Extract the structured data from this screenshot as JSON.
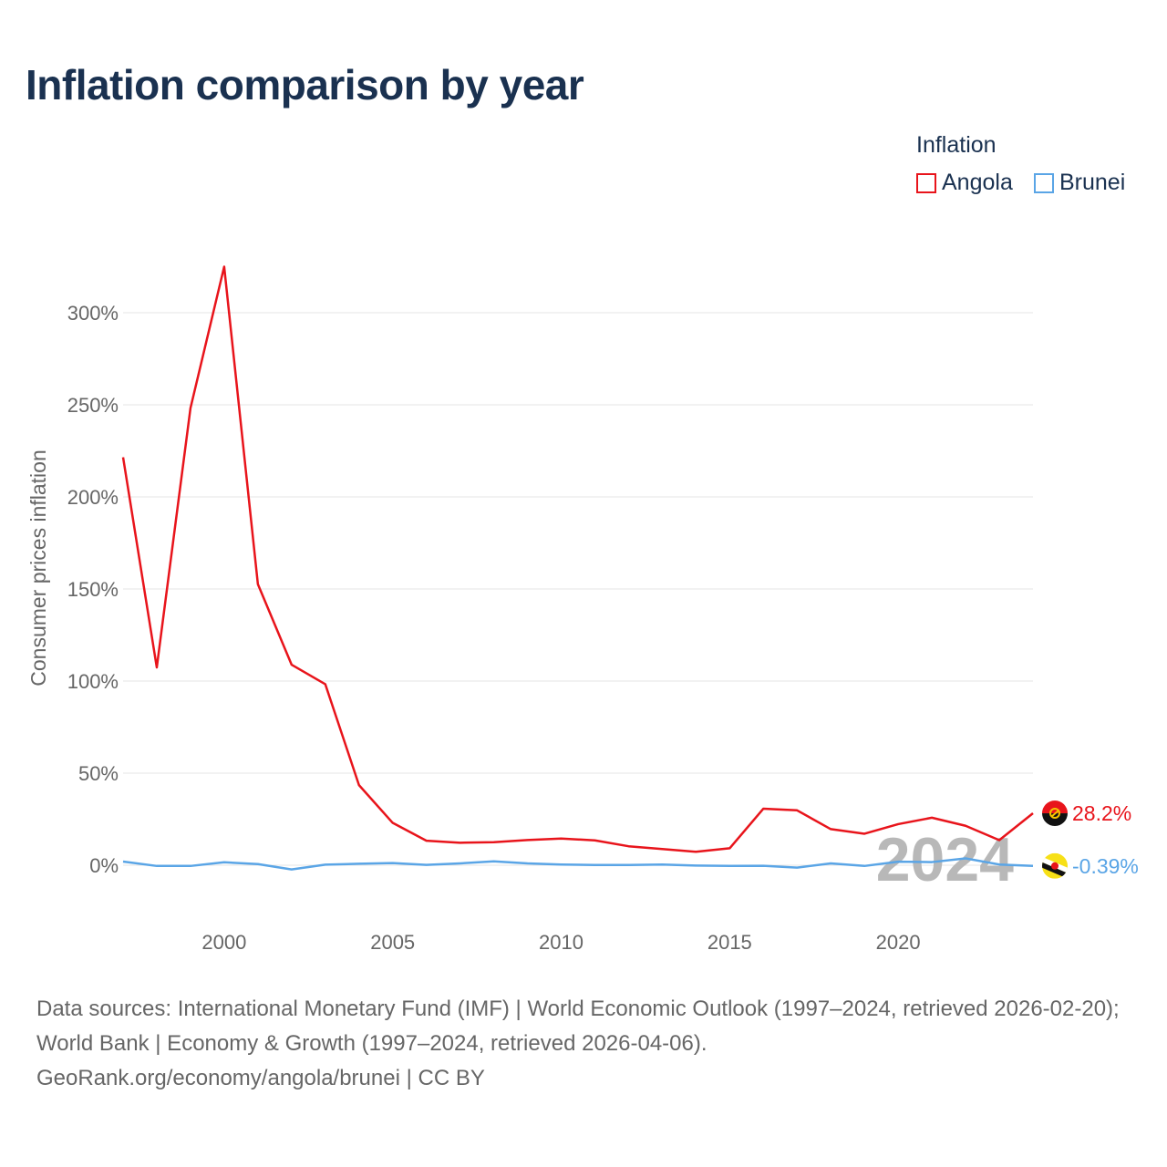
{
  "title": "Inflation comparison by year",
  "legend": {
    "title": "Inflation",
    "items": [
      {
        "label": "Angola",
        "color": "#e8141b"
      },
      {
        "label": "Brunei",
        "color": "#5aa5e6"
      }
    ]
  },
  "footer": {
    "sources": "Data sources: International Monetary Fund (IMF) | World Economic Outlook (1997–2024, retrieved 2026-02-20); World Bank | Economy & Growth (1997–2024, retrieved 2026-04-06).",
    "credit": "GeoRank.org/economy/angola/brunei | CC BY"
  },
  "chart_data": {
    "type": "line",
    "title": "Inflation comparison by year",
    "xlabel": "",
    "ylabel": "Consumer prices inflation",
    "xlim": [
      1997,
      2024
    ],
    "ylim": [
      -25,
      335
    ],
    "grid": true,
    "legend_position": "top-right",
    "x": [
      1997,
      1998,
      1999,
      2000,
      2001,
      2002,
      2003,
      2004,
      2005,
      2006,
      2007,
      2008,
      2009,
      2010,
      2011,
      2012,
      2013,
      2014,
      2015,
      2016,
      2017,
      2018,
      2019,
      2020,
      2021,
      2022,
      2023,
      2024
    ],
    "x_ticks": [
      2000,
      2005,
      2010,
      2015,
      2020
    ],
    "y_ticks": [
      0,
      50,
      100,
      150,
      200,
      250,
      300
    ],
    "y_tick_labels": [
      "0%",
      "50%",
      "100%",
      "150%",
      "200%",
      "250%",
      "300%"
    ],
    "highlight_year": "2024",
    "series": [
      {
        "name": "Angola",
        "color": "#e8141b",
        "end_label": "28.2%",
        "flag_icon": "angola-flag-icon",
        "values": [
          221.5,
          107.4,
          248.2,
          325.0,
          152.6,
          108.9,
          98.3,
          43.5,
          23.0,
          13.3,
          12.2,
          12.5,
          13.7,
          14.5,
          13.5,
          10.3,
          8.8,
          7.3,
          9.2,
          30.7,
          29.8,
          19.6,
          17.1,
          22.3,
          25.8,
          21.4,
          13.6,
          28.2
        ]
      },
      {
        "name": "Brunei",
        "color": "#5aa5e6",
        "end_label": "-0.39%",
        "flag_icon": "brunei-flag-icon",
        "values": [
          2.0,
          -0.4,
          -0.4,
          1.6,
          0.6,
          -2.3,
          0.3,
          0.8,
          1.2,
          0.2,
          1.0,
          2.1,
          1.0,
          0.4,
          0.1,
          0.1,
          0.4,
          -0.2,
          -0.4,
          -0.3,
          -1.3,
          1.0,
          -0.4,
          1.9,
          1.7,
          3.7,
          0.4,
          -0.39
        ]
      }
    ]
  }
}
